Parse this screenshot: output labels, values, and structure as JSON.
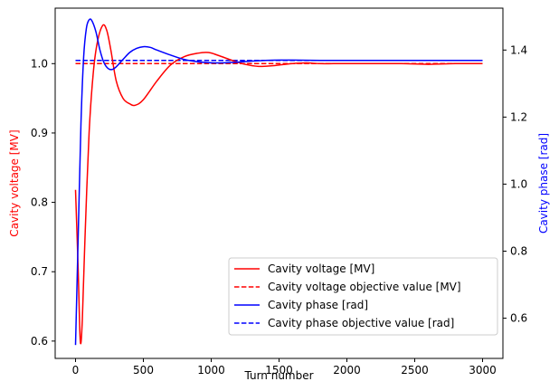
{
  "chart_data": {
    "type": "line",
    "title": "",
    "xlabel": "Turn number",
    "ylabel_left": "Cavity voltage [MV]",
    "ylabel_right": "Cavity phase [rad]",
    "xlim": [
      -150,
      3150
    ],
    "ylim_left": [
      0.575,
      1.08
    ],
    "ylim_right": [
      0.48,
      1.525
    ],
    "xticks": [
      "0",
      "500",
      "1000",
      "1500",
      "2000",
      "2500",
      "3000"
    ],
    "xtick_values": [
      0,
      500,
      1000,
      1500,
      2000,
      2500,
      3000
    ],
    "yticks_left": [
      "0.6",
      "0.7",
      "0.8",
      "0.9",
      "1.0"
    ],
    "ytick_left_values": [
      0.6,
      0.7,
      0.8,
      0.9,
      1.0
    ],
    "yticks_right": [
      "0.6",
      "0.8",
      "1.0",
      "1.2",
      "1.4"
    ],
    "ytick_right_values": [
      0.6,
      0.8,
      1.0,
      1.2,
      1.4
    ],
    "grid": false,
    "legend_position": "lower-right",
    "colors": {
      "voltage": "#ff0000",
      "phase": "#0000ff"
    },
    "series": [
      {
        "name": "Cavity voltage [MV]",
        "axis": "left",
        "style": "solid",
        "color": "#ff0000",
        "x": [
          0,
          20,
          35,
          50,
          70,
          100,
          130,
          160,
          200,
          230,
          260,
          300,
          350,
          400,
          440,
          500,
          600,
          700,
          800,
          900,
          980,
          1050,
          1150,
          1250,
          1350,
          1450,
          1500,
          1600,
          1700,
          1800,
          1900,
          2000,
          2200,
          2400,
          2600,
          2800,
          3000
        ],
        "y": [
          0.818,
          0.7,
          0.6,
          0.63,
          0.75,
          0.9,
          0.985,
          1.03,
          1.055,
          1.048,
          1.02,
          0.975,
          0.95,
          0.942,
          0.94,
          0.948,
          0.975,
          0.998,
          1.01,
          1.015,
          1.016,
          1.012,
          1.005,
          0.999,
          0.996,
          0.997,
          0.998,
          1.0,
          1.001,
          1.0,
          1.0,
          1.0,
          1.0,
          1.0,
          0.999,
          1.0,
          1.0
        ]
      },
      {
        "name": "Cavity voltage objective value [MV]",
        "axis": "left",
        "style": "dashed",
        "color": "#ff0000",
        "x": [
          0,
          3000
        ],
        "y": [
          1.0,
          1.0
        ]
      },
      {
        "name": "Cavity phase [rad]",
        "axis": "right",
        "style": "solid",
        "color": "#0000ff",
        "x": [
          0,
          20,
          40,
          60,
          80,
          100,
          120,
          150,
          180,
          210,
          240,
          270,
          300,
          350,
          400,
          450,
          500,
          550,
          600,
          700,
          800,
          900,
          1000,
          1100,
          1200,
          1300,
          1400,
          1500,
          1600,
          1800,
          2000,
          2500,
          3000
        ],
        "y": [
          0.52,
          0.85,
          1.18,
          1.38,
          1.465,
          1.49,
          1.488,
          1.455,
          1.4,
          1.362,
          1.345,
          1.342,
          1.35,
          1.372,
          1.393,
          1.405,
          1.41,
          1.408,
          1.4,
          1.385,
          1.372,
          1.365,
          1.362,
          1.362,
          1.364,
          1.367,
          1.369,
          1.37,
          1.37,
          1.369,
          1.369,
          1.369,
          1.369
        ]
      },
      {
        "name": "Cavity phase objective value [rad]",
        "axis": "right",
        "style": "dashed",
        "color": "#0000ff",
        "x": [
          0,
          3000
        ],
        "y": [
          1.369,
          1.369
        ]
      }
    ]
  }
}
